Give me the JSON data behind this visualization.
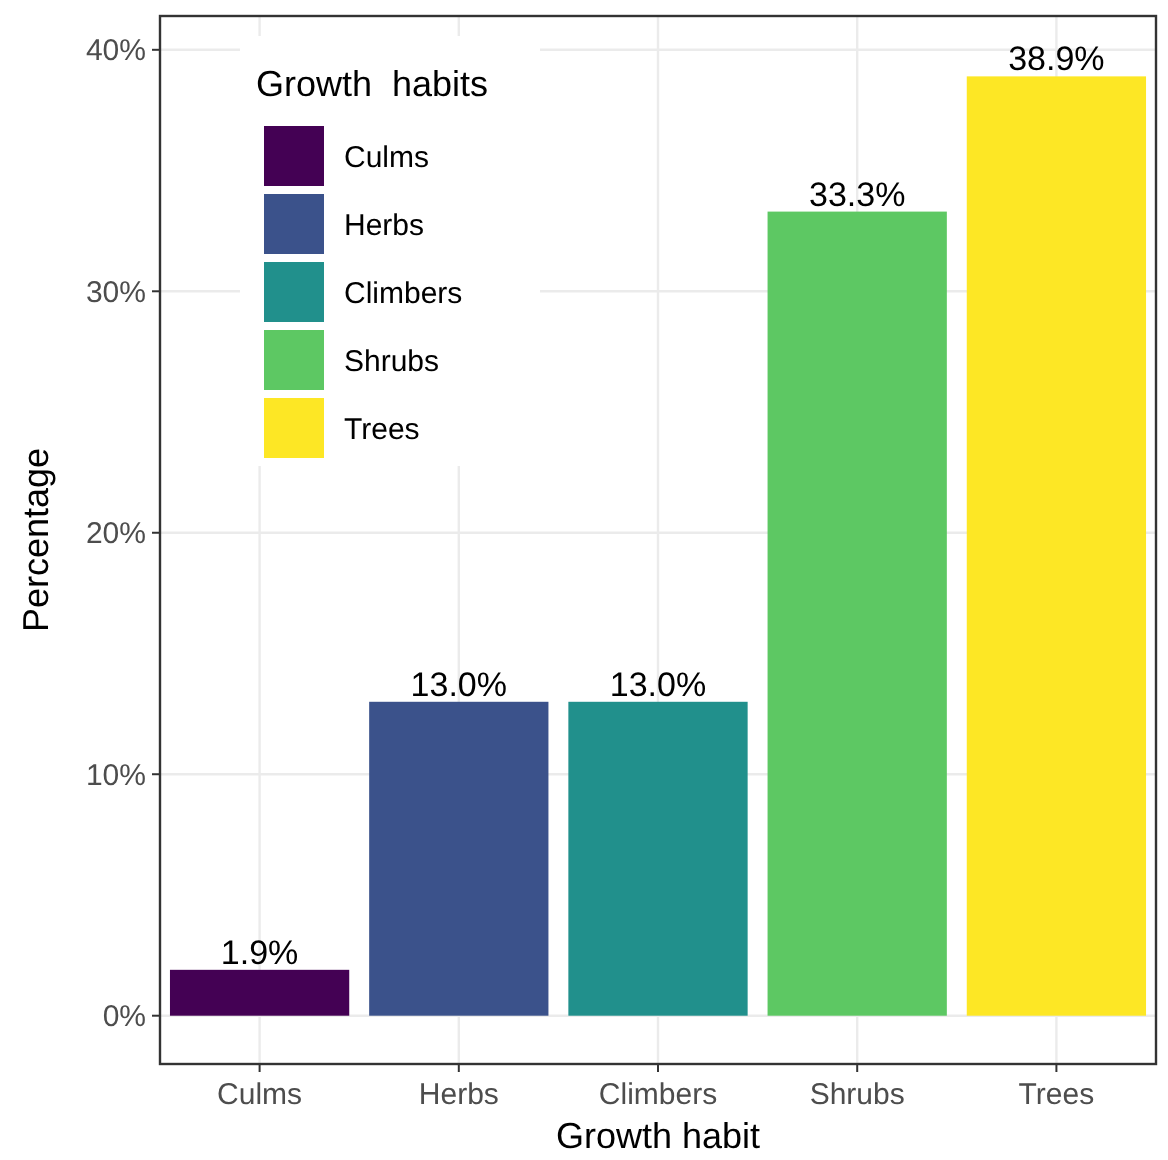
{
  "chart_data": {
    "type": "bar",
    "xlabel": "Growth habit",
    "ylabel": "Percentage",
    "legend_title": "Growth  habits",
    "categories": [
      "Culms",
      "Herbs",
      "Climbers",
      "Shrubs",
      "Trees"
    ],
    "series": [
      {
        "name": "Culms",
        "color": "#440154",
        "values": [
          1.9,
          null,
          null,
          null,
          null
        ],
        "value_labels": [
          "1.9%",
          null,
          null,
          null,
          null
        ]
      },
      {
        "name": "Herbs",
        "color": "#3b528b",
        "values": [
          null,
          13.0,
          null,
          null,
          null
        ],
        "value_labels": [
          null,
          "13.0%",
          null,
          null,
          null
        ]
      },
      {
        "name": "Climbers",
        "color": "#21908c",
        "values": [
          null,
          null,
          13.0,
          null,
          null
        ],
        "value_labels": [
          null,
          null,
          "13.0%",
          null,
          null
        ]
      },
      {
        "name": "Shrubs",
        "color": "#5dc863",
        "values": [
          null,
          null,
          null,
          33.3,
          null
        ],
        "value_labels": [
          null,
          null,
          null,
          "33.3%",
          null
        ]
      },
      {
        "name": "Trees",
        "color": "#fde725",
        "values": [
          null,
          null,
          null,
          null,
          38.9
        ],
        "value_labels": [
          null,
          null,
          null,
          null,
          "38.9%"
        ]
      }
    ],
    "ylim": [
      -2,
      41.4
    ],
    "yticks": [
      {
        "value": 0,
        "label": "0%"
      },
      {
        "value": 10,
        "label": "10%"
      },
      {
        "value": 20,
        "label": "20%"
      },
      {
        "value": 30,
        "label": "30%"
      },
      {
        "value": 40,
        "label": "40%"
      }
    ],
    "grid": true,
    "legend": "top left"
  }
}
